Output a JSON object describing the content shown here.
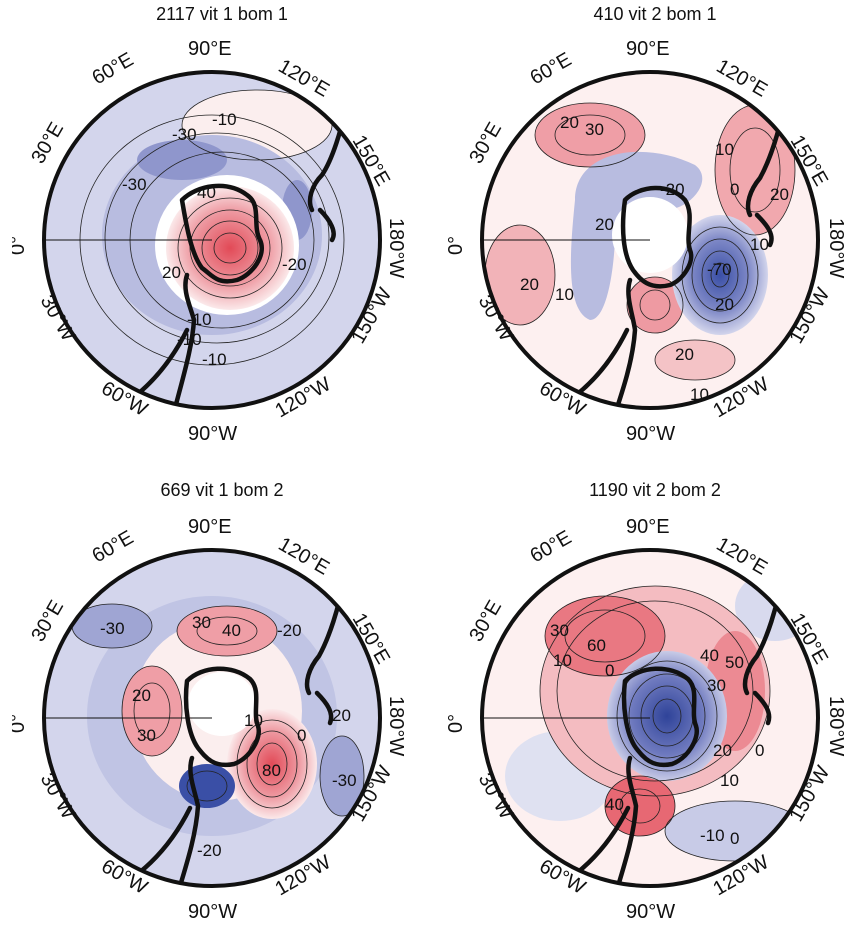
{
  "colors": {
    "positive": "#e24a57",
    "negative": "#3a4fa6",
    "positive_light": "#f7dede",
    "negative_light": "#d3d5ec"
  },
  "panels": [
    {
      "title": "2117 vit 1 bom 1",
      "lon_labels": {
        "e90": "90°E",
        "e60": "60°E",
        "e120": "120°E",
        "e30": "30°E",
        "e150": "150°E",
        "zero": "0°",
        "w180": "180°W",
        "w30": "30°W",
        "w150": "150°W",
        "w60": "60°W",
        "w120": "120°W",
        "w90": "90°W"
      },
      "contour_labels": [
        "-10",
        "-30",
        "-30",
        "40",
        "20",
        "-20",
        "-10",
        "-10",
        "-10"
      ]
    },
    {
      "title": "410 vit 2 bom 1",
      "lon_labels": {
        "e90": "90°E",
        "e60": "60°E",
        "e120": "120°E",
        "e30": "30°E",
        "e150": "150°E",
        "zero": "0°",
        "w180": "180°W",
        "w30": "30°W",
        "w150": "150°W",
        "w60": "60°W",
        "w120": "120°W",
        "w90": "90°W"
      },
      "contour_labels": [
        "20",
        "30",
        "10",
        "0",
        "20",
        "-20",
        "20",
        "10",
        "-70",
        "20",
        "10",
        "20",
        "20",
        "10"
      ]
    },
    {
      "title": "669 vit 1 bom 2",
      "lon_labels": {
        "e90": "90°E",
        "e60": "60°E",
        "e120": "120°E",
        "e30": "30°E",
        "e150": "150°E",
        "zero": "0°",
        "w180": "180°W",
        "w30": "30°W",
        "w150": "150°W",
        "w60": "60°W",
        "w120": "120°W",
        "w90": "90°W"
      },
      "contour_labels": [
        "-30",
        "30",
        "40",
        "-20",
        "20",
        "30",
        "10",
        "80",
        "0",
        "20",
        "-30",
        "-20"
      ]
    },
    {
      "title": "1190 vit 2 bom 2",
      "lon_labels": {
        "e90": "90°E",
        "e60": "60°E",
        "e120": "120°E",
        "e30": "30°E",
        "e150": "150°E",
        "zero": "0°",
        "w180": "180°W",
        "w30": "30°W",
        "w150": "150°W",
        "w60": "60°W",
        "w120": "120°W",
        "w90": "90°W"
      },
      "contour_labels": [
        "10",
        "60",
        "30",
        "0",
        "40",
        "50",
        "30",
        "20",
        "0",
        "10",
        "40",
        "-10",
        "0"
      ]
    }
  ]
}
